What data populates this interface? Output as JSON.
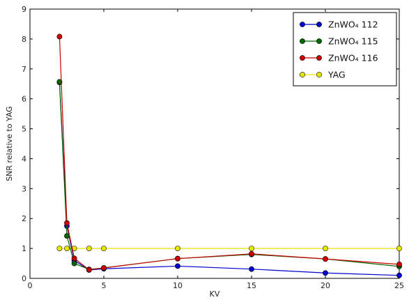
{
  "chart_data": {
    "type": "line",
    "title": "",
    "xlabel": "KV",
    "ylabel": "SNR relative to YAG",
    "xlim": [
      0,
      25
    ],
    "ylim": [
      0,
      9
    ],
    "xticks": [
      "0",
      "5",
      "10",
      "15",
      "20",
      "25"
    ],
    "yticks": [
      "0",
      "1",
      "2",
      "3",
      "4",
      "5",
      "6",
      "7",
      "8",
      "9"
    ],
    "grid": false,
    "legend_position": "top-right",
    "series": [
      {
        "name": "ZnWO₄ 112",
        "color": "#0000cc",
        "x": [
          2,
          2.5,
          3,
          4,
          5,
          10,
          15,
          20,
          25
        ],
        "y": [
          6.55,
          1.75,
          0.6,
          0.28,
          0.32,
          0.41,
          0.31,
          0.18,
          0.1
        ]
      },
      {
        "name": "ZnWO₄ 115",
        "color": "#006600",
        "x": [
          2,
          2.5,
          3,
          4,
          5,
          10,
          15,
          20,
          25
        ],
        "y": [
          6.57,
          1.42,
          0.5,
          0.3,
          0.35,
          0.66,
          0.8,
          0.65,
          0.4
        ]
      },
      {
        "name": "ZnWO₄ 116",
        "color": "#cc0000",
        "x": [
          2,
          2.5,
          3,
          4,
          5,
          10,
          15,
          20,
          25
        ],
        "y": [
          8.08,
          1.85,
          0.67,
          0.29,
          0.35,
          0.66,
          0.82,
          0.65,
          0.47
        ]
      },
      {
        "name": "YAG",
        "color": "#e6e600",
        "x": [
          2,
          2.5,
          3,
          4,
          5,
          10,
          15,
          20,
          25
        ],
        "y": [
          1,
          1,
          1,
          1,
          1,
          1,
          1,
          1,
          1
        ]
      }
    ]
  }
}
